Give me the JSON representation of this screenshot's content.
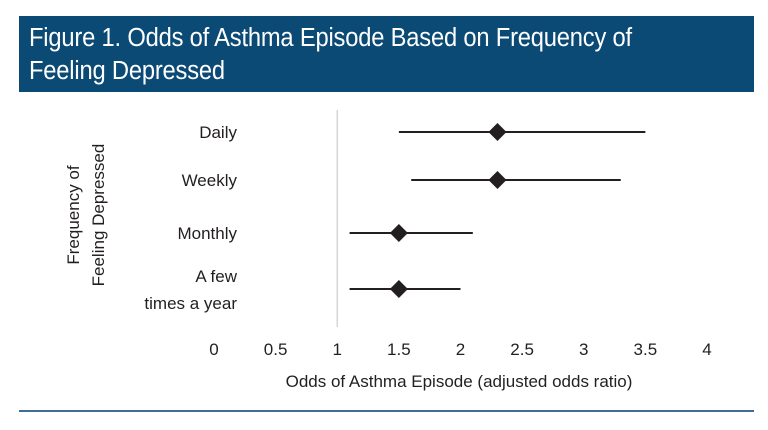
{
  "title": "Figure 1. Odds of Asthma Episode Based on Frequency of\nFeeling Depressed",
  "colors": {
    "title_bar": "#0a4a75",
    "title_text": "#ffffff",
    "marker": "#231f20",
    "reference_line": "#d0d0d8",
    "bottom_rule": "#3f6d98"
  },
  "chart_data": {
    "type": "forest",
    "title": "Figure 1. Odds of Asthma Episode Based on Frequency of Feeling Depressed",
    "xlabel": "Odds of Asthma Episode (adjusted odds ratio)",
    "ylabel_lines": [
      "Frequency of",
      "Feeling Depressed"
    ],
    "xlim": [
      0,
      4
    ],
    "xticks": [
      0,
      0.5,
      1,
      1.5,
      2,
      2.5,
      3,
      3.5,
      4
    ],
    "xtick_labels": [
      "0",
      "0.5",
      "1",
      "1.5",
      "2",
      "2.5",
      "3",
      "3.5",
      "4"
    ],
    "reference_line": 1,
    "grid": false,
    "marker": "diamond",
    "categories": [
      {
        "label_lines": [
          "Daily"
        ],
        "estimate": 2.3,
        "ci_low": 1.5,
        "ci_high": 3.5
      },
      {
        "label_lines": [
          "Weekly"
        ],
        "estimate": 2.3,
        "ci_low": 1.6,
        "ci_high": 3.3
      },
      {
        "label_lines": [
          "Monthly"
        ],
        "estimate": 1.5,
        "ci_low": 1.1,
        "ci_high": 2.1
      },
      {
        "label_lines": [
          "A few",
          "times a year"
        ],
        "estimate": 1.5,
        "ci_low": 1.1,
        "ci_high": 2.0
      }
    ]
  }
}
